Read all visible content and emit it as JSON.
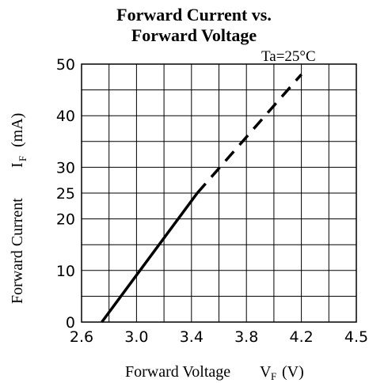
{
  "chart_data": {
    "type": "line",
    "title_line1": "Forward Current vs.",
    "title_line2": "Forward Voltage",
    "annotation": "Ta=25°C",
    "xlabel": "Forward Voltage",
    "xlabel_symbol": "V",
    "xlabel_sub": "F",
    "xlabel_unit": "(V)",
    "ylabel": "Forward Current",
    "ylabel_symbol": "I",
    "ylabel_sub": "F",
    "ylabel_unit": "(mA)",
    "x_ticks": [
      "2.6",
      "3.0",
      "3.4",
      "3.8",
      "4.2",
      "4.5"
    ],
    "y_ticks": [
      "0",
      "10",
      "20",
      "25",
      "30",
      "40",
      "50"
    ],
    "xlim": [
      2.6,
      4.5
    ],
    "ylim": [
      0,
      50
    ],
    "series": [
      {
        "style": "solid",
        "x": [
          2.74,
          3.4
        ],
        "y": [
          0,
          25
        ]
      },
      {
        "style": "dashed",
        "x": [
          3.4,
          4.12
        ],
        "y": [
          25,
          48
        ]
      }
    ],
    "grid": true
  }
}
